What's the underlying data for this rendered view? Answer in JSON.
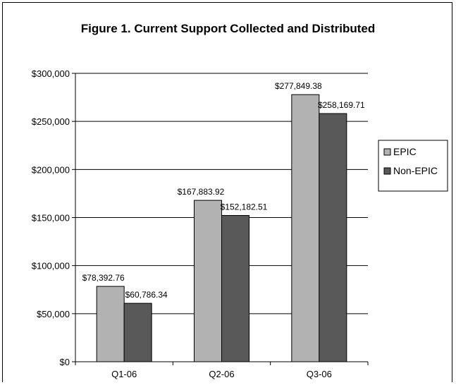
{
  "chart_data": {
    "type": "bar",
    "title": "Figure 1. Current Support Collected and Distributed",
    "categories": [
      "Q1-06",
      "Q2-06",
      "Q3-06"
    ],
    "series": [
      {
        "name": "EPIC",
        "values": [
          78392.76,
          167883.92,
          277849.38
        ],
        "color": "#b2b2b2",
        "value_labels": [
          "$78,392.76",
          "$167,883.92",
          "$277,849.38"
        ]
      },
      {
        "name": "Non-EPIC",
        "values": [
          60786.34,
          152182.51,
          258169.71
        ],
        "color": "#595959",
        "value_labels": [
          "$60,786.34",
          "$152,182.51",
          "$258,169.71"
        ]
      }
    ],
    "ylim": [
      0,
      300000
    ],
    "yticks": [
      0,
      50000,
      100000,
      150000,
      200000,
      250000,
      300000
    ],
    "ytick_labels": [
      "$0",
      "$50,000",
      "$100,000",
      "$150,000",
      "$200,000",
      "$250,000",
      "$300,000"
    ],
    "xlabel": "",
    "ylabel": "",
    "grid": true,
    "legend": "right"
  }
}
